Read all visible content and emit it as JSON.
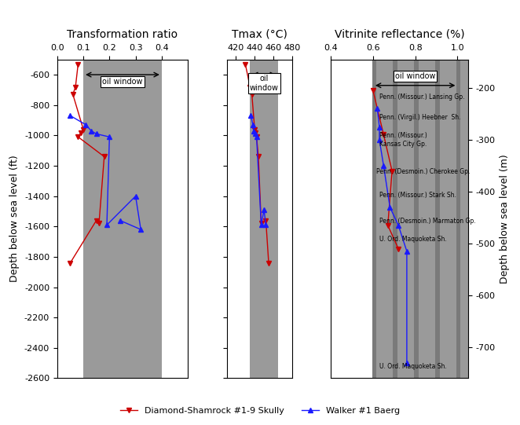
{
  "chart_data": [
    {
      "type": "line",
      "title": "Transformation ratio",
      "y_label": "Depth below sea level (ft)",
      "xlim": [
        0.0,
        0.5
      ],
      "xticks": [
        0.0,
        0.1,
        0.2,
        0.3,
        0.4
      ],
      "ylim": [
        -2600,
        -500
      ],
      "yticks": [
        -600,
        -800,
        -1000,
        -1200,
        -1400,
        -1600,
        -1800,
        -2000,
        -2200,
        -2400,
        -2600
      ],
      "series": [
        {
          "name": "Diamond-Shamrock #1-9 Skully",
          "color": "#cc0000",
          "marker": "triangle_down",
          "line_style": "solid",
          "x": [
            0.08,
            0.07,
            0.06,
            0.1,
            0.09,
            0.08,
            0.18,
            0.16,
            0.15,
            0.05
          ],
          "values": [
            -530,
            -680,
            -730,
            -960,
            -985,
            -1010,
            -1140,
            -1580,
            -1560,
            -1840
          ]
        },
        {
          "name": "Walker #1 Baerg",
          "color": "#1a1aff",
          "marker": "triangle_up",
          "line_style": "solid",
          "x": [
            0.05,
            0.11,
            0.13,
            0.15,
            0.2,
            0.19,
            0.3,
            0.32,
            0.24
          ],
          "values": [
            -870,
            -930,
            -970,
            -990,
            -1010,
            -1590,
            -1400,
            -1620,
            -1560
          ]
        }
      ],
      "regions": [
        {
          "x": [
            0.1,
            0.4
          ],
          "color": "#9a9a9a"
        }
      ],
      "oil_window": {
        "text": "oil window",
        "x": [
          0.1,
          0.4
        ],
        "y": -600,
        "label_x": 0.25,
        "label_y": -620
      },
      "legend": "lower center"
    },
    {
      "type": "line",
      "title": "Tmax (°C)",
      "xlim": [
        410,
        480
      ],
      "xticks": [
        420,
        440,
        460,
        480
      ],
      "ylim": [
        -2600,
        -500
      ],
      "yticks": [
        -600,
        -800,
        -1000,
        -1200,
        -1400,
        -1600,
        -1800,
        -2000,
        -2200,
        -2400,
        -2600
      ],
      "tick_labels": "x",
      "series": [
        {
          "name": "Diamond-Shamrock #1-9 Skully",
          "color": "#cc0000",
          "marker": "triangle_down",
          "line_style": "solid",
          "x": [
            430,
            435,
            437,
            440,
            441,
            442,
            444,
            447,
            452,
            455
          ],
          "values": [
            -530,
            -680,
            -730,
            -960,
            -985,
            -1010,
            -1140,
            -1580,
            -1560,
            -1840
          ]
        },
        {
          "name": "Walker #1 Baerg",
          "color": "#1a1aff",
          "marker": "triangle_up",
          "line_style": "solid",
          "x": [
            436,
            438,
            439,
            441,
            442,
            447,
            450,
            452
          ],
          "values": [
            -870,
            -930,
            -970,
            -990,
            -1010,
            -1590,
            -1490,
            -1590
          ]
        }
      ],
      "regions": [
        {
          "x": [
            435,
            465
          ],
          "color": "#9a9a9a"
        }
      ],
      "oil_window": {
        "text": "oil\nwindow",
        "x": [
          435,
          465
        ],
        "y": -600,
        "label_x": 450,
        "label_y": -600
      }
    },
    {
      "type": "line",
      "title": "Vitrinite reflectance (%)",
      "y_label": "Depth below sea level (m)",
      "xlim": [
        0.4,
        1.05
      ],
      "xticks": [
        0.4,
        0.6,
        0.8,
        1.0
      ],
      "ylim": [
        -760,
        -145
      ],
      "yticks": [
        -200,
        -300,
        -400,
        -500,
        -600,
        -700
      ],
      "series": [
        {
          "name": "Diamond-Shamrock #1-9 Skully",
          "color": "#cc0000",
          "marker": "triangle_down",
          "line_style": "solid",
          "x": [
            0.6,
            0.65,
            0.69,
            0.67,
            0.72
          ],
          "values": [
            -205,
            -290,
            -360,
            -465,
            -510
          ]
        },
        {
          "name": "Walker #1 Baerg",
          "color": "#1a1aff",
          "marker": "triangle_up",
          "line_style": "solid",
          "x": [
            0.62,
            0.63,
            0.63,
            0.65,
            0.68,
            0.72,
            0.76,
            0.76
          ],
          "values": [
            -240,
            -275,
            -300,
            -350,
            -430,
            -465,
            -515,
            -730
          ]
        }
      ],
      "regions": [
        {
          "x": [
            0.6,
            1.05
          ],
          "color": "#9a9a9a"
        },
        {
          "x": [
            0.595,
            0.615
          ],
          "color": "#7a7a7a"
        },
        {
          "x": [
            0.695,
            0.715
          ],
          "color": "#7a7a7a"
        },
        {
          "x": [
            0.795,
            0.815
          ],
          "color": "#7a7a7a"
        },
        {
          "x": [
            0.895,
            0.915
          ],
          "color": "#7a7a7a"
        },
        {
          "x": [
            0.995,
            1.015
          ],
          "color": "#7a7a7a"
        }
      ],
      "oil_window": {
        "text": "oil window",
        "x": [
          0.6,
          1.0
        ],
        "y": -195,
        "label_x": 0.8,
        "label_y": -185
      },
      "annotations": [
        {
          "text": "Penn. (Missour.) Lansing Gp.",
          "x": 0.63,
          "y": -210
        },
        {
          "text": "Penn. (Virgil.) Heebner  Sh.",
          "x": 0.63,
          "y": -250
        },
        {
          "text": "Penn. (Missour.)\nKansas City Gp.",
          "x": 0.63,
          "y": -285
        },
        {
          "text": "Penn. (Desmoin.) Cherokee Gp.",
          "x": 0.615,
          "y": -355
        },
        {
          "text": "Penn. (Missour.) Stark Sh.",
          "x": 0.63,
          "y": -400
        },
        {
          "text": "Penn. (Desmoin.) Marmaton Gp.",
          "x": 0.63,
          "y": -450
        },
        {
          "text": "U. Ord. Maquoketa Sh.",
          "x": 0.63,
          "y": -485
        },
        {
          "text": "U. Ord. Maquoketa Sh.",
          "x": 0.63,
          "y": -730
        }
      ]
    }
  ]
}
